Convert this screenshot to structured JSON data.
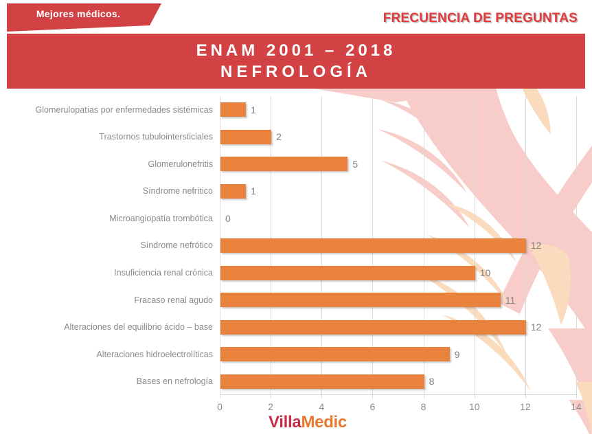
{
  "header": {
    "ribbon_label": "Mejores médicos.",
    "heading": "FRECUENCIA DE PREGUNTAS",
    "banner_line1": "ENAM 2001 – 2018",
    "banner_line2": "NEFROLOGÍA"
  },
  "footer": {
    "logo_part1": "Villa",
    "logo_part2": "Medic"
  },
  "colors": {
    "banner_red": "#D24143",
    "heading_red": "#E23B3D",
    "bar_orange": "#E8823C",
    "category_label_gray": "#8A8A8A",
    "value_label_gray": "#7F7F7F",
    "gridline_gray": "#D9D9D9",
    "logo_red": "#C42F47",
    "logo_orange": "#E6792E",
    "decor_pink": "#F8CCC9",
    "decor_peach": "#FBDBBE"
  },
  "chart_data": {
    "type": "bar",
    "orientation": "horizontal",
    "title": "",
    "xlabel": "",
    "ylabel": "",
    "categories": [
      "Glomerulopatías por enfermedades sistémicas",
      "Trastornos tubulointersticiales",
      "Glomerulonefritis",
      "Síndrome nefrítico",
      "Microangiopatía trombótica",
      "Síndrome nefrótico",
      "Insuficiencia renal crónica",
      "Fracaso renal agudo",
      "Alteraciones del equilibrio ácido – base",
      "Alteraciones hidroelectrolíticas",
      "Bases en nefrología"
    ],
    "values": [
      1,
      2,
      5,
      1,
      0,
      12,
      10,
      11,
      12,
      9,
      8
    ],
    "xlim": [
      0,
      14
    ],
    "xticks": [
      0,
      2,
      4,
      6,
      8,
      10,
      12,
      14
    ],
    "grid": true,
    "legend": false,
    "data_labels": true
  }
}
